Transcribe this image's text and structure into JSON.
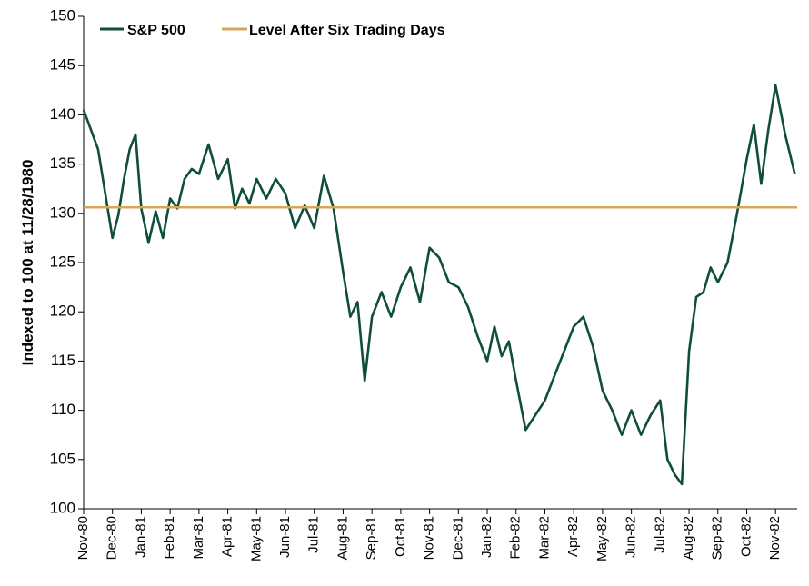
{
  "chart_data": {
    "type": "line",
    "title": "",
    "ylabel": "Indexed to 100 at 11/28/1980",
    "xlabel": "",
    "ylim": [
      100,
      150
    ],
    "y_ticks": [
      100,
      105,
      110,
      115,
      120,
      125,
      130,
      135,
      140,
      145,
      150
    ],
    "x_tick_labels": [
      "Nov-80",
      "Dec-80",
      "Jan-81",
      "Feb-81",
      "Mar-81",
      "Apr-81",
      "May-81",
      "Jun-81",
      "Jul-81",
      "Aug-81",
      "Sep-81",
      "Oct-81",
      "Nov-81",
      "Dec-81",
      "Jan-82",
      "Feb-82",
      "Mar-82",
      "Apr-82",
      "May-82",
      "Jun-82",
      "Jul-82",
      "Aug-82",
      "Sep-82",
      "Oct-82",
      "Nov-82"
    ],
    "grid": false,
    "legend_position": "top-left",
    "series": [
      {
        "name": "S&P 500",
        "color": "#0f4d3c",
        "x": [
          "Nov-80",
          "Nov-80",
          "Dec-80",
          "Dec-80",
          "Dec-80",
          "Dec-80",
          "Dec-80",
          "Jan-81",
          "Jan-81",
          "Jan-81",
          "Jan-81",
          "Feb-81",
          "Feb-81",
          "Feb-81",
          "Feb-81",
          "Mar-81",
          "Mar-81",
          "Mar-81",
          "Apr-81",
          "Apr-81",
          "Apr-81",
          "Apr-81",
          "May-81",
          "May-81",
          "May-81",
          "Jun-81",
          "Jun-81",
          "Jun-81",
          "Jul-81",
          "Jul-81",
          "Jul-81",
          "Aug-81",
          "Aug-81",
          "Aug-81",
          "Aug-81",
          "Sep-81",
          "Sep-81",
          "Sep-81",
          "Oct-81",
          "Oct-81",
          "Oct-81",
          "Nov-81",
          "Nov-81",
          "Nov-81",
          "Dec-81",
          "Dec-81",
          "Dec-81",
          "Jan-82",
          "Jan-82",
          "Jan-82",
          "Jan-82",
          "Feb-82",
          "Feb-82",
          "Feb-82",
          "Mar-82",
          "Mar-82",
          "Mar-82",
          "Apr-82",
          "Apr-82",
          "Apr-82",
          "May-82",
          "May-82",
          "May-82",
          "Jun-82",
          "Jun-82",
          "Jun-82",
          "Jul-82",
          "Jul-82",
          "Jul-82",
          "Jul-82",
          "Aug-82",
          "Aug-82",
          "Aug-82",
          "Aug-82",
          "Sep-82",
          "Sep-82",
          "Sep-82",
          "Oct-82",
          "Oct-82",
          "Oct-82",
          "Oct-82",
          "Nov-82",
          "Nov-82",
          "Nov-82"
        ],
        "y": [
          140.5,
          136.5,
          127.5,
          129.8,
          133.5,
          136.5,
          138.0,
          130.5,
          127.0,
          130.2,
          127.5,
          131.5,
          130.5,
          133.5,
          134.5,
          134.0,
          137.0,
          133.5,
          135.5,
          130.5,
          132.5,
          131.0,
          133.5,
          131.5,
          133.5,
          132.0,
          128.5,
          130.8,
          128.5,
          133.8,
          130.5,
          124.0,
          119.5,
          121.0,
          113.0,
          119.5,
          122.0,
          119.5,
          122.5,
          124.5,
          121.0,
          126.5,
          125.5,
          123.0,
          122.5,
          120.5,
          117.5,
          115.0,
          118.5,
          115.5,
          117.0,
          113.0,
          108.0,
          109.5,
          111.0,
          113.5,
          116.0,
          118.5,
          119.5,
          116.5,
          112.0,
          110.0,
          107.5,
          110.0,
          107.5,
          109.5,
          111.0,
          105.0,
          103.5,
          102.5,
          116.0,
          121.5,
          122.0,
          124.5,
          123.0,
          125.0,
          130.0,
          135.5,
          139.0,
          133.0,
          138.5,
          143.0,
          138.0,
          134.0
        ]
      },
      {
        "name": "Level After Six Trading Days",
        "color": "#d4a55b",
        "constant": 130.6
      }
    ]
  }
}
